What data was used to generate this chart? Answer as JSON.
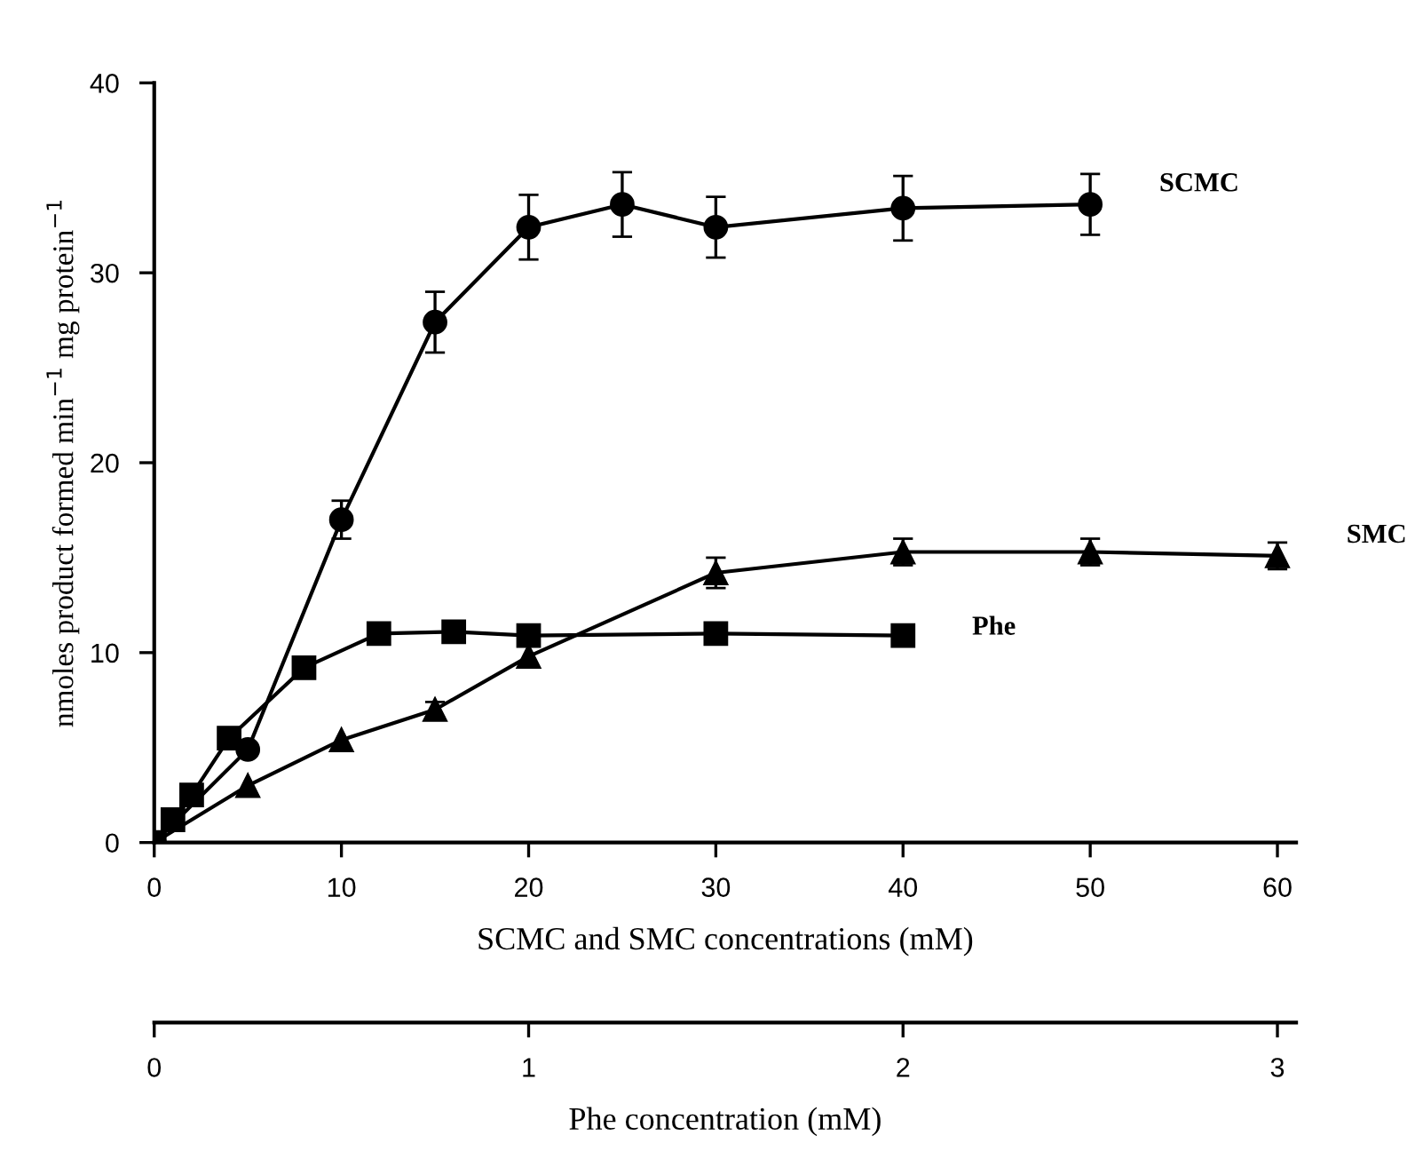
{
  "chart_data": {
    "type": "line",
    "xlabel": "SCMC and SMC concentrations (mM)",
    "ylabel": "nmoles product formed min$^{−1}$ mg protein$^{−1}$",
    "x2label": "Phe concentration (mM)",
    "xlim": [
      0,
      61
    ],
    "xticks": [
      0,
      10,
      20,
      30,
      40,
      50,
      60
    ],
    "x2lim": [
      0,
      3.05
    ],
    "x2ticks": [
      0,
      1,
      2,
      3
    ],
    "ylim": [
      0,
      40
    ],
    "yticks": [
      0,
      10,
      20,
      30,
      40
    ],
    "grid": false,
    "legend": false,
    "line_style": "solid",
    "series": [
      {
        "name": "SCMC",
        "color": "#000000",
        "marker": "circle",
        "x": [
          0,
          5,
          10,
          15,
          20,
          25,
          30,
          40,
          50
        ],
        "values": [
          0,
          4.9,
          17.0,
          27.4,
          32.4,
          33.6,
          32.4,
          33.4,
          33.6
        ],
        "errors": [
          null,
          null,
          1.0,
          1.6,
          1.7,
          1.7,
          1.6,
          1.7,
          1.6
        ]
      },
      {
        "name": "SMC",
        "color": "#000000",
        "marker": "triangle",
        "x": [
          0,
          5,
          10,
          15,
          20,
          30,
          40,
          50,
          60
        ],
        "values": [
          0,
          3.0,
          5.4,
          7.0,
          9.8,
          14.2,
          15.3,
          15.3,
          15.1
        ],
        "errors": [
          null,
          null,
          null,
          0.4,
          null,
          0.8,
          0.7,
          0.7,
          0.7
        ]
      },
      {
        "name": "Phe",
        "color": "#000000",
        "marker": "square",
        "axis": "x2",
        "x": [
          0,
          0.05,
          0.1,
          0.2,
          0.4,
          0.6,
          0.8,
          1.0,
          1.5,
          2.0
        ],
        "values": [
          0,
          1.2,
          2.5,
          5.5,
          9.2,
          11.0,
          11.1,
          10.9,
          11.0,
          10.9
        ],
        "errors": [
          null,
          null,
          null,
          null,
          null,
          null,
          null,
          null,
          0.5,
          null
        ]
      }
    ]
  }
}
